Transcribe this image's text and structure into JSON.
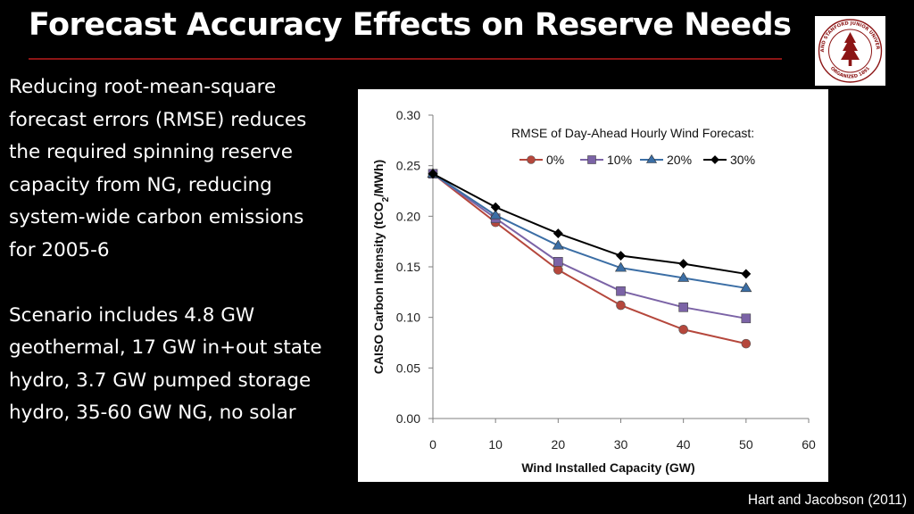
{
  "slide": {
    "title": "Forecast Accuracy Effects on Reserve Needs",
    "paragraphs": [
      "Reducing root-mean-square forecast errors (RMSE) reduces the required spinning reserve capacity from NG, reducing system-wide carbon emissions for 2005-6",
      "Scenario includes 4.8 GW geothermal, 17 GW in+out state hydro, 3.7 GW pumped storage hydro, 35-60 GW NG, no solar"
    ],
    "citation": "Hart and Jacobson (2011)",
    "accent_color": "#8c1515",
    "logo": {
      "name": "stanford-university-seal",
      "ring_text_top": "LELAND STANFORD JUNIOR UNIVERSITY",
      "ring_text_bottom": "ORGANIZED 1891",
      "color": "#8c1515"
    }
  },
  "chart_data": {
    "type": "line",
    "xlabel": "Wind Installed Capacity (GW)",
    "ylabel": "CAISO Carbon Intensity (tCO2/MWh)",
    "xlim": [
      0,
      60
    ],
    "ylim": [
      0,
      0.3
    ],
    "xticks": [
      "0",
      "10",
      "20",
      "30",
      "40",
      "50",
      "60"
    ],
    "yticks": [
      "0.00",
      "0.05",
      "0.10",
      "0.15",
      "0.20",
      "0.25",
      "0.30"
    ],
    "legend_title": "RMSE of Day-Ahead Hourly Wind Forecast:",
    "legend_position": "top-right",
    "grid": false,
    "x": [
      0,
      10,
      20,
      30,
      40,
      50
    ],
    "series": [
      {
        "name": "0%",
        "color": "#b5473c",
        "marker": "circle",
        "values": [
          0.242,
          0.194,
          0.147,
          0.112,
          0.088,
          0.074
        ]
      },
      {
        "name": "10%",
        "color": "#7b63a6",
        "marker": "square",
        "values": [
          0.242,
          0.198,
          0.155,
          0.126,
          0.11,
          0.099
        ]
      },
      {
        "name": "20%",
        "color": "#3b6ea5",
        "marker": "triangle",
        "values": [
          0.242,
          0.201,
          0.171,
          0.149,
          0.139,
          0.129
        ]
      },
      {
        "name": "30%",
        "color": "#000000",
        "marker": "diamond",
        "values": [
          0.242,
          0.209,
          0.183,
          0.161,
          0.153,
          0.143
        ]
      }
    ]
  }
}
